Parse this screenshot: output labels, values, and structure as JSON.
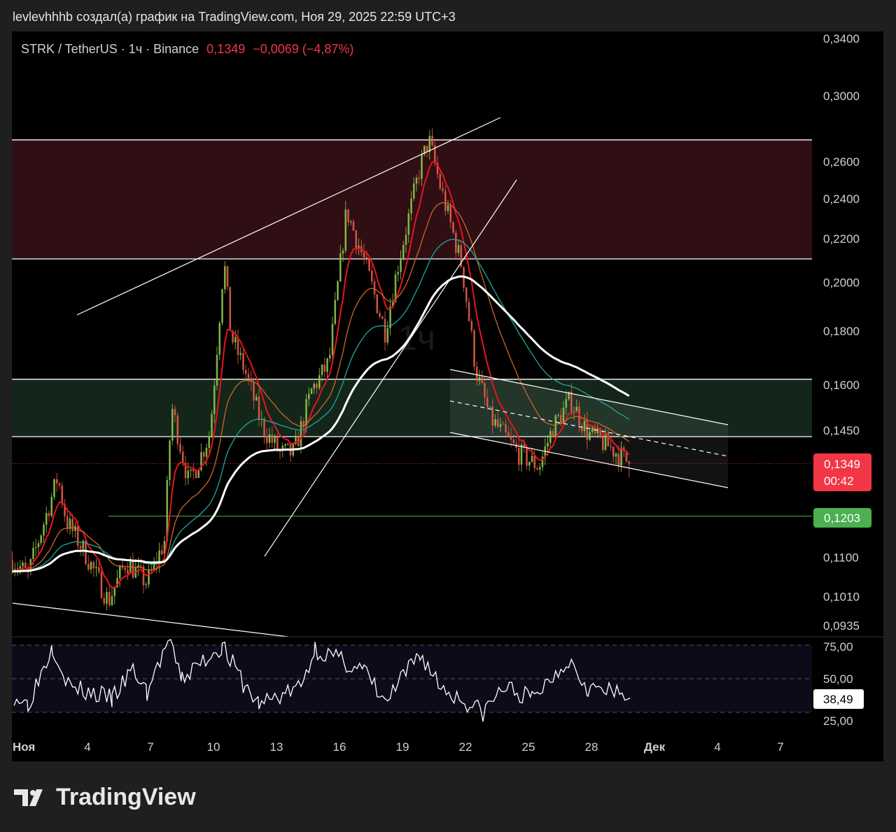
{
  "header": {
    "text": "levlevhhhb создал(а) график на TradingView.com, Ноя 29, 2025 22:59 UTC+3"
  },
  "symbol": {
    "name": "STRK / TetherUS · 1ч · Binance",
    "price": "0,1349",
    "change": "−0,0069 (−4,87%)"
  },
  "watermark": "1ч",
  "footer": {
    "brand": "TradingView"
  },
  "colors": {
    "up": "#26a69a",
    "down": "#f23645",
    "resistance_zone": "#2f0e14",
    "support_zone": "#14261a",
    "ma_white": "#ffffff",
    "ma_teal": "#1ea7a0",
    "ma_orange": "#c8682a",
    "ma_red": "#e8141e",
    "level_green": "#4caf50"
  },
  "chart_data": [
    {
      "type": "candlestick",
      "title": "STRK / TetherUS · 1ч · Binance",
      "yscale": "log",
      "ylim": [
        0.0935,
        0.34
      ],
      "yticks": [
        "0,3400",
        "0,3000",
        "0,2600",
        "0,2400",
        "0,2200",
        "0,2000",
        "0,1800",
        "0,1600",
        "0,1450",
        "0,1100",
        "0,1010",
        "0,0935"
      ],
      "ytick_values": [
        0.34,
        0.3,
        0.26,
        0.24,
        0.22,
        0.2,
        0.18,
        0.16,
        0.145,
        0.11,
        0.101,
        0.0935
      ],
      "xticks": [
        "Ноя",
        "4",
        "7",
        "10",
        "13",
        "16",
        "19",
        "22",
        "25",
        "28",
        "Дек",
        "4",
        "7"
      ],
      "xtick_dates": [
        "2025-11-01",
        "2025-11-04",
        "2025-11-07",
        "2025-11-10",
        "2025-11-13",
        "2025-11-16",
        "2025-11-19",
        "2025-11-22",
        "2025-11-25",
        "2025-11-28",
        "2025-12-01",
        "2025-12-04",
        "2025-12-07"
      ],
      "close_path": [
        [
          "2025-10-31T10:00",
          0.1094
        ],
        [
          "2025-11-01T04:00",
          0.1059
        ],
        [
          "2025-11-02T14:00",
          0.131
        ],
        [
          "2025-11-03T00:00",
          0.119
        ],
        [
          "2025-11-03T20:00",
          0.1116
        ],
        [
          "2025-11-05T00:00",
          0.1
        ],
        [
          "2025-11-05T20:00",
          0.109
        ],
        [
          "2025-11-06T20:00",
          0.104
        ],
        [
          "2025-11-07T16:00",
          0.114
        ],
        [
          "2025-11-08T00:00",
          0.153
        ],
        [
          "2025-11-08T20:00",
          0.129
        ],
        [
          "2025-11-09T20:00",
          0.144
        ],
        [
          "2025-11-10T12:00",
          0.21
        ],
        [
          "2025-11-10T20:00",
          0.178
        ],
        [
          "2025-11-11T12:00",
          0.165
        ],
        [
          "2025-11-12T08:00",
          0.146
        ],
        [
          "2025-11-13T04:00",
          0.138
        ],
        [
          "2025-11-13T20:00",
          0.138
        ],
        [
          "2025-11-14T16:00",
          0.158
        ],
        [
          "2025-11-15T12:00",
          0.168
        ],
        [
          "2025-11-16T08:00",
          0.234
        ],
        [
          "2025-11-17T04:00",
          0.21
        ],
        [
          "2025-11-18T04:00",
          0.18
        ],
        [
          "2025-11-18T20:00",
          0.21
        ],
        [
          "2025-11-19T20:00",
          0.257
        ],
        [
          "2025-11-20T06:00",
          0.273
        ],
        [
          "2025-11-20T20:00",
          0.245
        ],
        [
          "2025-11-21T20:00",
          0.207
        ],
        [
          "2025-11-22T12:00",
          0.165
        ],
        [
          "2025-11-23T04:00",
          0.149
        ],
        [
          "2025-11-24T12:00",
          0.138
        ],
        [
          "2025-11-25T12:00",
          0.134
        ],
        [
          "2025-11-26T04:00",
          0.146
        ],
        [
          "2025-11-27T00:00",
          0.155
        ],
        [
          "2025-11-27T20:00",
          0.144
        ],
        [
          "2025-11-28T20:00",
          0.14
        ],
        [
          "2025-11-29T20:00",
          0.1349
        ]
      ],
      "zones": [
        {
          "name": "resistance",
          "from": 0.2105,
          "to": 0.2727
        },
        {
          "name": "support",
          "from": 0.143,
          "to": 0.162
        }
      ],
      "levels": [
        {
          "label": "0,1203",
          "value": 0.1203
        },
        {
          "label": "0,1349",
          "value": 0.1349,
          "countdown": "00:42"
        }
      ]
    },
    {
      "type": "line",
      "title": "RSI",
      "ylim": [
        20,
        80
      ],
      "yticks": [
        "75,00",
        "50,00",
        "25,00"
      ],
      "ytick_values": [
        75,
        50,
        25
      ],
      "last_label": "38,49",
      "points": [
        [
          "2025-10-31T12:00",
          40
        ],
        [
          "2025-11-01T04:00",
          35
        ],
        [
          "2025-11-02T08:00",
          70
        ],
        [
          "2025-11-03T04:00",
          45
        ],
        [
          "2025-11-05T04:00",
          38
        ],
        [
          "2025-11-06T04:00",
          55
        ],
        [
          "2025-11-06T20:00",
          42
        ],
        [
          "2025-11-07T20:00",
          72
        ],
        [
          "2025-11-08T12:00",
          50
        ],
        [
          "2025-11-10T10:00",
          70
        ],
        [
          "2025-11-11T12:00",
          45
        ],
        [
          "2025-11-12T04:00",
          35
        ],
        [
          "2025-11-14T04:00",
          45
        ],
        [
          "2025-11-14T20:00",
          68
        ],
        [
          "2025-11-15T20:00",
          62
        ],
        [
          "2025-11-17T04:00",
          55
        ],
        [
          "2025-11-18T04:00",
          35
        ],
        [
          "2025-11-19T20:00",
          65
        ],
        [
          "2025-11-20T20:00",
          45
        ],
        [
          "2025-11-22T20:00",
          30
        ],
        [
          "2025-11-23T20:00",
          45
        ],
        [
          "2025-11-25T04:00",
          38
        ],
        [
          "2025-11-26T22:00",
          62
        ],
        [
          "2025-11-27T20:00",
          45
        ],
        [
          "2025-11-28T20:00",
          42
        ],
        [
          "2025-11-29T20:00",
          38.49
        ]
      ]
    }
  ]
}
